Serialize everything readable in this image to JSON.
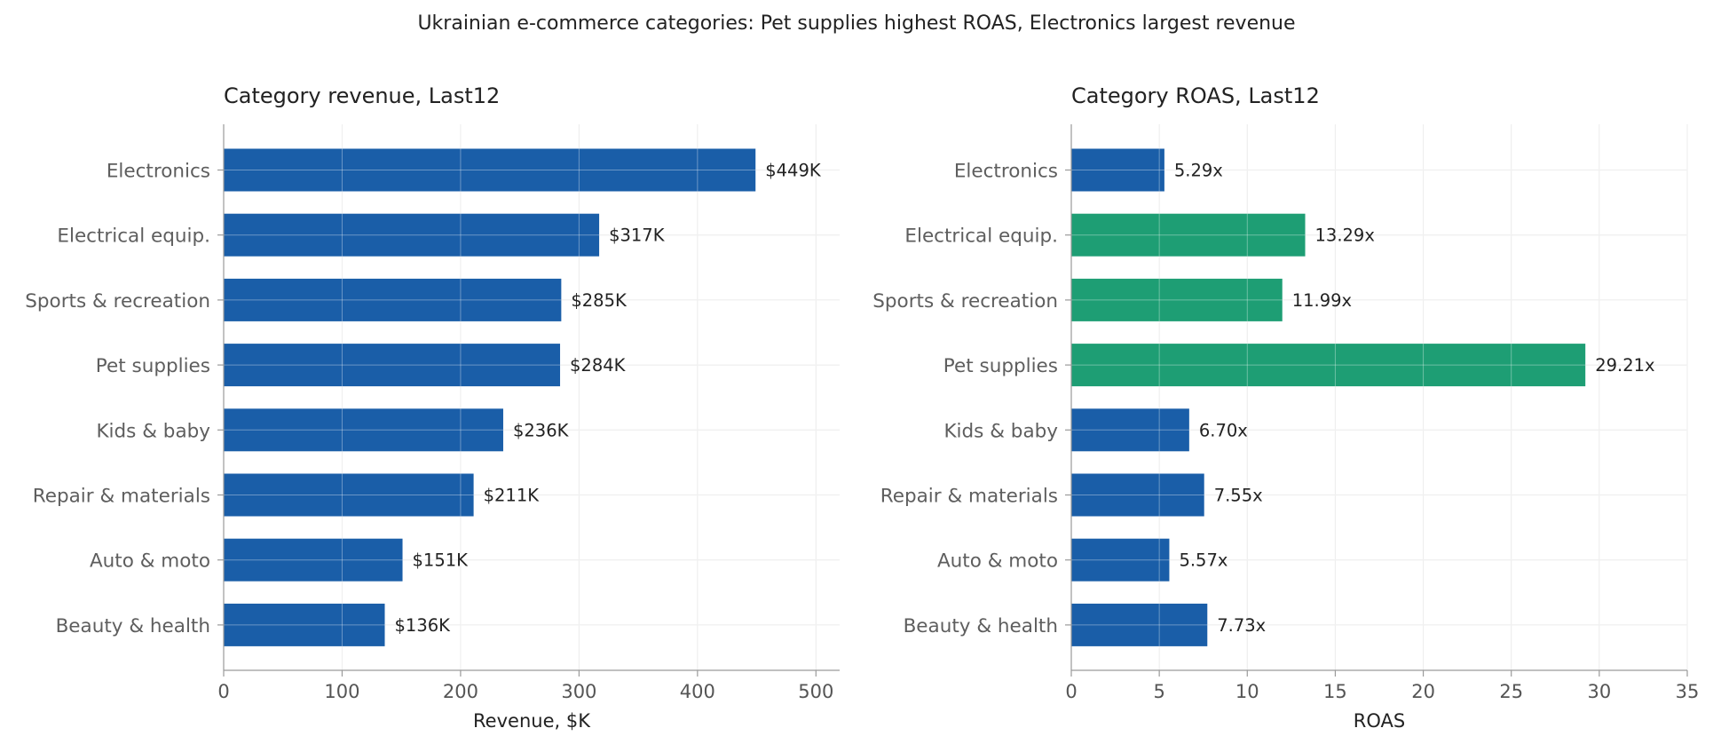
{
  "suptitle": "Ukrainian e-commerce categories: Pet supplies highest ROAS, Electronics largest revenue",
  "chart_data": [
    {
      "type": "bar",
      "orientation": "horizontal",
      "title": "Category revenue, Last12",
      "xlabel": "Revenue, $K",
      "ylabel": "",
      "categories": [
        "Electronics",
        "Electrical equip.",
        "Sports & recreation",
        "Pet supplies",
        "Kids & baby",
        "Repair & materials",
        "Auto & moto",
        "Beauty & health"
      ],
      "values": [
        449,
        317,
        285,
        284,
        236,
        211,
        151,
        136
      ],
      "value_labels": [
        "$449K",
        "$317K",
        "$285K",
        "$284K",
        "$236K",
        "$211K",
        "$151K",
        "$136K"
      ],
      "xlim": [
        0,
        520
      ],
      "xticks": [
        0,
        100,
        200,
        300,
        400,
        500
      ],
      "xtick_labels": [
        "0",
        "100",
        "200",
        "300",
        "400",
        "500"
      ],
      "grid": true,
      "bar_colors": [
        "#1a5ea8",
        "#1a5ea8",
        "#1a5ea8",
        "#1a5ea8",
        "#1a5ea8",
        "#1a5ea8",
        "#1a5ea8",
        "#1a5ea8"
      ]
    },
    {
      "type": "bar",
      "orientation": "horizontal",
      "title": "Category ROAS, Last12",
      "xlabel": "ROAS",
      "ylabel": "",
      "categories": [
        "Electronics",
        "Electrical equip.",
        "Sports & recreation",
        "Pet supplies",
        "Kids & baby",
        "Repair & materials",
        "Auto & moto",
        "Beauty & health"
      ],
      "values": [
        5.29,
        13.29,
        11.99,
        29.21,
        6.7,
        7.55,
        5.57,
        7.73
      ],
      "value_labels": [
        "5.29x",
        "13.29x",
        "11.99x",
        "29.21x",
        "6.70x",
        "7.55x",
        "5.57x",
        "7.73x"
      ],
      "xlim": [
        0,
        35
      ],
      "xticks": [
        0,
        5,
        10,
        15,
        20,
        25,
        30,
        35
      ],
      "xtick_labels": [
        "0",
        "5",
        "10",
        "15",
        "20",
        "25",
        "30",
        "35"
      ],
      "grid": true,
      "bar_colors": [
        "#1a5ea8",
        "#1e9e74",
        "#1e9e74",
        "#1e9e74",
        "#1a5ea8",
        "#1a5ea8",
        "#1a5ea8",
        "#1a5ea8"
      ]
    }
  ]
}
